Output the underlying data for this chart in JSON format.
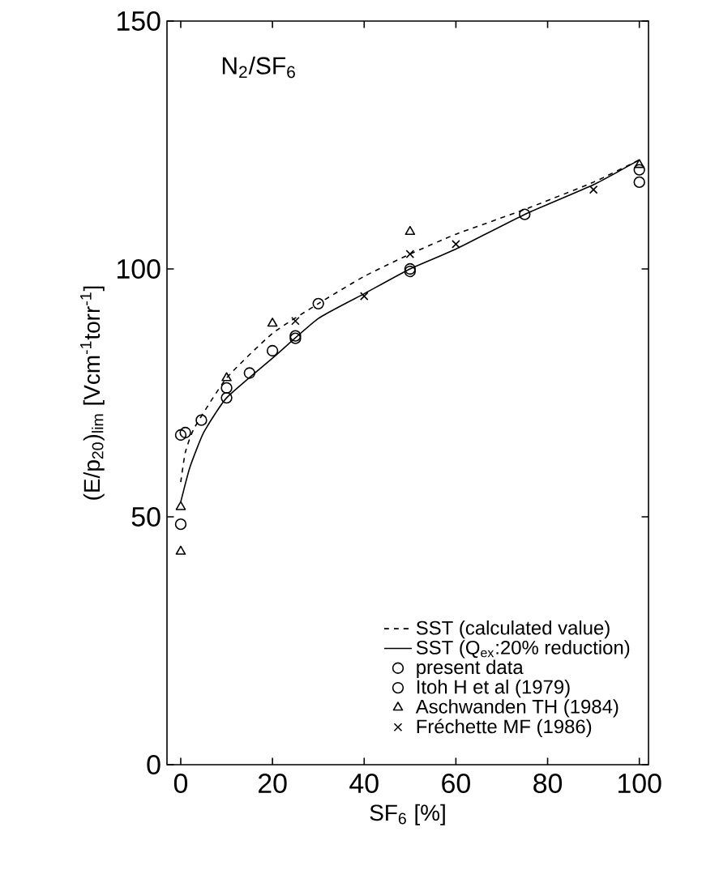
{
  "chart_data": {
    "type": "scatter",
    "xlabel": "SF$_{6}$ [%]",
    "ylabel": "(E/p$_{20}$)$_{lim}$ [Vcm$^{-1}$torr$^{-1}$]",
    "annotations": [
      "N$_{2}$/SF$_{6}$"
    ],
    "xlim": [
      -3,
      102
    ],
    "ylim": [
      0,
      150
    ],
    "xticks": [
      0,
      20,
      40,
      60,
      80,
      100
    ],
    "yticks": [
      0,
      50,
      100,
      150
    ],
    "legend": "bottom right",
    "series": [
      {
        "name": "SST (calculated value)",
        "type": "line",
        "line_style": "dashed",
        "marker": "none",
        "color": "#000000",
        "x": [
          0,
          1,
          3,
          10,
          20,
          30,
          40,
          50,
          60,
          75,
          90,
          100
        ],
        "values": [
          57,
          63,
          68,
          78,
          87,
          93,
          98.5,
          103,
          107,
          112,
          117.5,
          122
        ]
      },
      {
        "name": "SST (Q$_{ex}$:20% reduction)",
        "type": "line",
        "line_style": "solid",
        "marker": "none",
        "color": "#000000",
        "x": [
          0,
          2,
          5,
          10,
          20,
          30,
          40,
          50,
          60,
          75,
          90,
          100
        ],
        "values": [
          53,
          60,
          67,
          74,
          82,
          90,
          95,
          100,
          104,
          111,
          117,
          122
        ]
      },
      {
        "name": "present data",
        "marker": "circle",
        "color": "#000000",
        "x": [
          0,
          10,
          15,
          20,
          25,
          30,
          50,
          100
        ],
        "values": [
          48.5,
          76,
          79,
          83.5,
          86.5,
          93,
          99.5,
          117.5
        ]
      },
      {
        "name": "Itoh H et al (1979)",
        "marker": "circle",
        "color": "#000000",
        "x": [
          0,
          1,
          4.5,
          10,
          25,
          50,
          75,
          100
        ],
        "values": [
          66.5,
          67,
          69.5,
          74,
          86,
          100,
          111,
          120
        ]
      },
      {
        "name": "Aschwanden TH (1984)",
        "marker": "triangle",
        "color": "#000000",
        "x": [
          0,
          0,
          10,
          20,
          50,
          100
        ],
        "values": [
          43,
          52,
          78,
          89,
          107.5,
          121
        ]
      },
      {
        "name": "Fréchette MF (1986)",
        "marker": "cross",
        "color": "#000000",
        "x": [
          25,
          40,
          50,
          60,
          90
        ],
        "values": [
          89.5,
          94.5,
          103,
          105,
          116
        ]
      }
    ]
  }
}
